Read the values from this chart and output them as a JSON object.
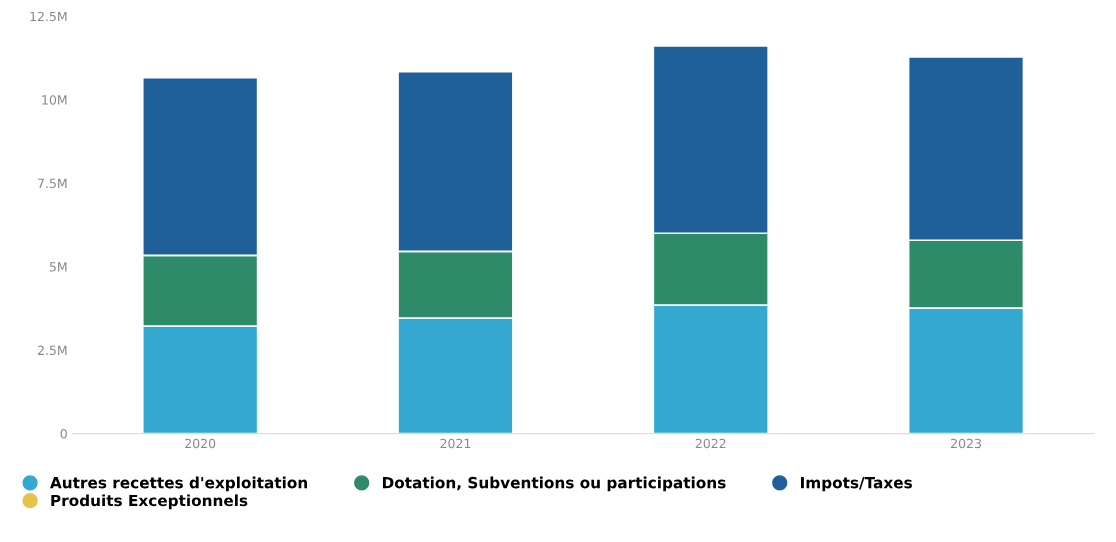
{
  "chart_data": {
    "type": "bar",
    "stacked": true,
    "categories": [
      "2020",
      "2021",
      "2022",
      "2023"
    ],
    "series": [
      {
        "name": "Autres recettes d'exploitation",
        "color": "#33a9d2",
        "values": [
          3.22,
          3.46,
          3.85,
          3.76
        ]
      },
      {
        "name": "Dotation, Subventions ou participations",
        "color": "#2e8b6a",
        "values": [
          2.12,
          2.0,
          2.15,
          2.03
        ]
      },
      {
        "name": "Impots/Taxes",
        "color": "#1f5f9a",
        "values": [
          5.32,
          5.38,
          5.61,
          5.49
        ]
      },
      {
        "name": "Produits Exceptionnels",
        "color": "#e6c34a",
        "values": [
          null,
          null,
          null,
          null
        ]
      }
    ],
    "ylim": [
      0,
      12.5
    ],
    "yticks": [
      {
        "value": 0,
        "label": "0"
      },
      {
        "value": 2.5,
        "label": "2.5M"
      },
      {
        "value": 5,
        "label": "5M"
      },
      {
        "value": 7.5,
        "label": "7.5M"
      },
      {
        "value": 10,
        "label": "10M"
      },
      {
        "value": 12.5,
        "label": "12.5M"
      }
    ],
    "grid": false,
    "legend": "bottom"
  }
}
